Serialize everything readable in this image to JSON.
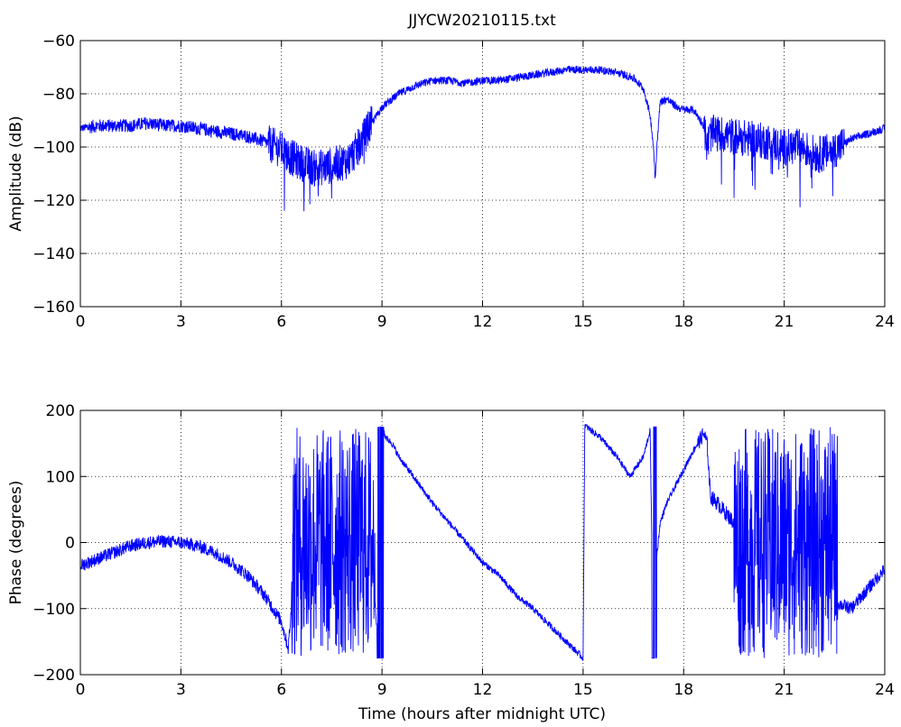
{
  "window": {
    "title": "JJYCW20210115.txt"
  },
  "chart_data": [
    {
      "type": "line",
      "title": "JJYCW20210115.txt",
      "xlabel": "",
      "ylabel": "Amplitude (dB)",
      "xlim": [
        0,
        24
      ],
      "ylim": [
        -160,
        -60
      ],
      "xticks": [
        0,
        3,
        6,
        9,
        12,
        15,
        18,
        21,
        24
      ],
      "yticks": [
        -60,
        -80,
        -100,
        -120,
        -140,
        -160
      ],
      "xtick_labels": [
        "0",
        "3",
        "6",
        "9",
        "12",
        "15",
        "18",
        "21",
        "24"
      ],
      "ytick_labels": [
        "−60",
        "−80",
        "−100",
        "−120",
        "−140",
        "−160"
      ],
      "grid": true,
      "series": [
        {
          "color": "#0000ff",
          "x": [
            0,
            0.5,
            1,
            1.5,
            2,
            2.5,
            3,
            3.5,
            4,
            4.5,
            5,
            5.5,
            6,
            6.3,
            6.6,
            7,
            7.5,
            8,
            8.3,
            8.6,
            9,
            9.5,
            10,
            10.5,
            11,
            11.5,
            12,
            12.5,
            13,
            13.5,
            14,
            14.5,
            15,
            15.5,
            16,
            16.5,
            16.8,
            17,
            17.1,
            17.15,
            17.2,
            17.3,
            17.5,
            17.8,
            18,
            18.3,
            18.6,
            18.7,
            18.8,
            19,
            19.5,
            20,
            20.5,
            21,
            21.5,
            22,
            22.5,
            23,
            23.5,
            24
          ],
          "y": [
            -93,
            -92,
            -92,
            -92,
            -91,
            -92,
            -92,
            -93,
            -94,
            -95,
            -96,
            -98,
            -101,
            -104,
            -106,
            -108,
            -107,
            -105,
            -100,
            -93,
            -85,
            -80,
            -77,
            -75,
            -75,
            -76,
            -75,
            -75,
            -74,
            -73,
            -72,
            -71,
            -71,
            -71,
            -72,
            -74,
            -78,
            -88,
            -100,
            -112,
            -100,
            -83,
            -82,
            -85,
            -86,
            -86,
            -92,
            -100,
            -95,
            -95,
            -96,
            -97,
            -98,
            -100,
            -100,
            -103,
            -101,
            -97,
            -95,
            -93
          ]
        }
      ]
    },
    {
      "type": "line",
      "title": "",
      "xlabel": "Time (hours after midnight UTC)",
      "ylabel": "Phase (degrees)",
      "xlim": [
        0,
        24
      ],
      "ylim": [
        -200,
        200
      ],
      "xticks": [
        0,
        3,
        6,
        9,
        12,
        15,
        18,
        21,
        24
      ],
      "yticks": [
        200,
        100,
        0,
        -100,
        -200
      ],
      "xtick_labels": [
        "0",
        "3",
        "6",
        "9",
        "12",
        "15",
        "18",
        "21",
        "24"
      ],
      "ytick_labels": [
        "200",
        "100",
        "0",
        "−100",
        "−200"
      ],
      "grid": true,
      "series": [
        {
          "color": "#0000ff",
          "x": [
            0,
            0.5,
            1,
            1.5,
            2,
            2.5,
            3,
            3.5,
            4,
            4.5,
            5,
            5.5,
            6,
            6.2,
            6.3,
            6.6,
            7,
            7.5,
            8,
            8.5,
            8.7,
            8.9,
            9.0,
            9.05,
            9.1,
            9.3,
            9.5,
            10,
            10.5,
            11,
            11.5,
            12,
            12.5,
            13,
            13.5,
            14,
            14.5,
            15,
            15.05,
            15.1,
            15.5,
            16,
            16.4,
            16.8,
            17.0,
            17.1,
            17.15,
            17.2,
            17.3,
            17.5,
            17.8,
            18,
            18.3,
            18.6,
            18.7,
            18.8,
            19,
            19.5,
            20,
            20.5,
            21,
            21.5,
            22,
            22.5,
            23,
            23.5,
            24
          ],
          "y": [
            -35,
            -25,
            -15,
            -5,
            0,
            2,
            0,
            -5,
            -15,
            -30,
            -50,
            -80,
            -120,
            -160,
            -100,
            0,
            0,
            0,
            0,
            0,
            -20,
            -170,
            175,
            170,
            160,
            150,
            130,
            95,
            60,
            30,
            0,
            -30,
            -50,
            -80,
            -100,
            -125,
            -150,
            -175,
            178,
            175,
            160,
            130,
            100,
            130,
            170,
            -170,
            -100,
            -20,
            30,
            60,
            90,
            110,
            140,
            165,
            150,
            70,
            60,
            30,
            0,
            -20,
            -40,
            -60,
            -80,
            -90,
            -100,
            -70,
            -40
          ]
        }
      ]
    }
  ]
}
